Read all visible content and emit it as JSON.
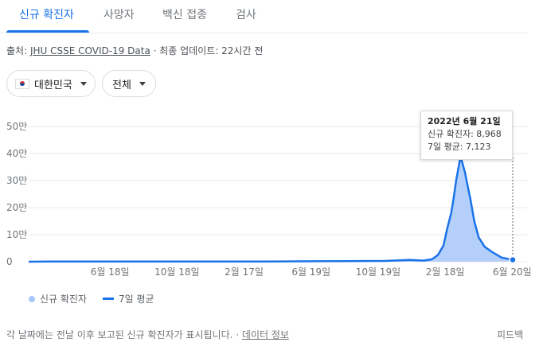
{
  "tabs": [
    "신규 확진자",
    "사망자",
    "백신 접종",
    "검사"
  ],
  "source": {
    "prefix": "출처: ",
    "link": "JHU CSSE COVID-19 Data",
    "suffix": " · 최종 업데이트: 22시간 전"
  },
  "filters": {
    "region": "대한민국",
    "range": "전체"
  },
  "tooltip": {
    "date": "2022년 6월 21일",
    "cases": "신규 확진자: 8,968",
    "avg": "7일 평균: 7,123"
  },
  "legend": {
    "cases": "신규 확진자",
    "avg": "7일 평균"
  },
  "footer": {
    "note": "각 날짜에는 전날 이후 보고된 신규 확진자가 표시됩니다.",
    "sep": " · ",
    "link": "데이터 정보",
    "feedback": "피드백"
  },
  "colors": {
    "accent": "#1a73e8",
    "bars": "#a8c7fa",
    "grid": "#e8eaed"
  },
  "chart_data": {
    "type": "area",
    "ylim": [
      0,
      500000
    ],
    "yticks": [
      0,
      100000,
      200000,
      300000,
      400000,
      500000
    ],
    "ytick_labels": [
      "0",
      "10만",
      "20만",
      "30만",
      "40만",
      "50만"
    ],
    "xlim": [
      "2020-01-22",
      "2022-06-21"
    ],
    "xticks": [
      {
        "date": "2020-06-18",
        "label": "6월 18일"
      },
      {
        "date": "2020-10-18",
        "label": "10월 18일"
      },
      {
        "date": "2021-02-17",
        "label": "2월 17일"
      },
      {
        "date": "2021-06-19",
        "label": "6월 19일"
      },
      {
        "date": "2021-10-19",
        "label": "10월 19일"
      },
      {
        "date": "2022-02-18",
        "label": "2월 18일"
      },
      {
        "date": "2022-06-20",
        "label": "6월 20일"
      }
    ],
    "series": [
      {
        "name": "7일 평균",
        "x": [
          "2020-01-22",
          "2020-03-01",
          "2020-06-01",
          "2020-09-01",
          "2020-12-01",
          "2021-01-01",
          "2021-04-01",
          "2021-07-01",
          "2021-09-01",
          "2021-11-01",
          "2021-12-15",
          "2022-01-10",
          "2022-01-25",
          "2022-02-05",
          "2022-02-15",
          "2022-02-22",
          "2022-03-01",
          "2022-03-05",
          "2022-03-10",
          "2022-03-14",
          "2022-03-18",
          "2022-03-22",
          "2022-03-26",
          "2022-03-30",
          "2022-04-05",
          "2022-04-12",
          "2022-04-20",
          "2022-05-01",
          "2022-05-15",
          "2022-06-01",
          "2022-06-21"
        ],
        "values": [
          0,
          500,
          500,
          500,
          700,
          1000,
          700,
          1800,
          2000,
          3000,
          6500,
          4000,
          9000,
          25000,
          60000,
          125000,
          180000,
          230000,
          300000,
          345000,
          390000,
          360000,
          330000,
          290000,
          230000,
          150000,
          90000,
          55000,
          35000,
          15000,
          7123
        ]
      }
    ],
    "highlight": {
      "date": "2022-06-21",
      "cases": 8968,
      "avg": 7123
    }
  }
}
